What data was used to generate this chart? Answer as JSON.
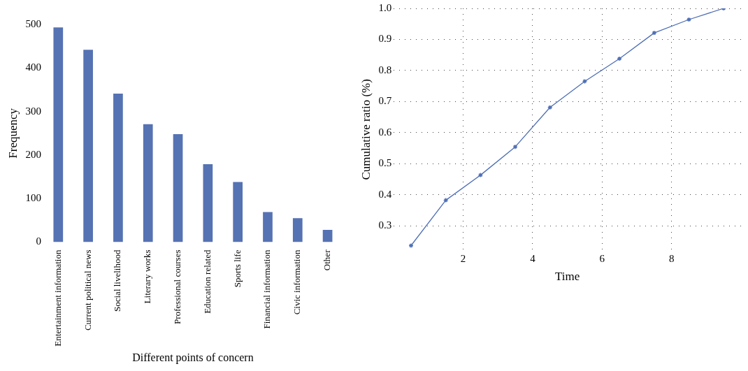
{
  "chart_data": [
    {
      "type": "bar",
      "xlabel": "Different points of concern",
      "ylabel": "Frequency",
      "categories": [
        "Entertainment information",
        "Current political news",
        "Social livelihood",
        "Literary works",
        "Professional courses",
        "Education related",
        "Sports life",
        "Financial information",
        "Civic information",
        "Other"
      ],
      "values": [
        493,
        442,
        341,
        271,
        248,
        179,
        138,
        69,
        55,
        28
      ],
      "color": "#5572b3",
      "ylim": [
        0,
        500
      ],
      "yticks": [
        0,
        100,
        200,
        300,
        400,
        500
      ],
      "grid": false,
      "legend": false
    },
    {
      "type": "line",
      "xlabel": "Time",
      "ylabel": "Cumulative ratio (%)",
      "x": [
        0.5,
        1.5,
        2.5,
        3.5,
        4.5,
        5.5,
        6.5,
        7.5,
        8.5,
        9.5
      ],
      "values": [
        0.236,
        0.382,
        0.463,
        0.554,
        0.681,
        0.765,
        0.838,
        0.921,
        0.964,
        1.0
      ],
      "color": "#4e6fb6",
      "xlim": [
        0,
        10
      ],
      "xticks": [
        2,
        4,
        6,
        8
      ],
      "ylim": [
        0.22,
        1.0
      ],
      "yticks": [
        0.3,
        0.4,
        0.5,
        0.6,
        0.7,
        0.8,
        0.9,
        {
          "value": 1.0,
          "label": "1.0"
        }
      ],
      "grid": true,
      "legend": false,
      "marker": "cross",
      "line_style": "solid"
    }
  ]
}
